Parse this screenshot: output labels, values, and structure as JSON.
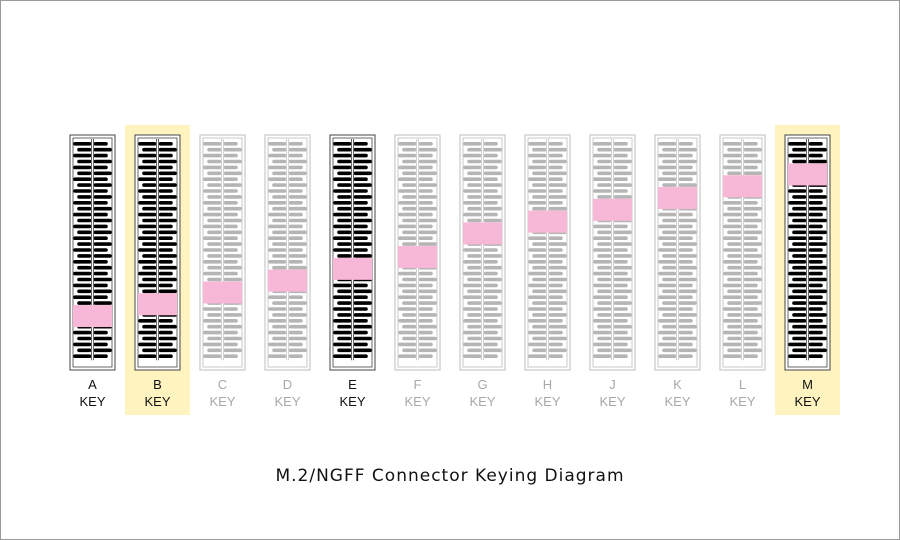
{
  "caption": "M.2/NGFF Connector Keying Diagram",
  "colors": {
    "active": "#000000",
    "inactive": "#b5b5b5",
    "notch": "#f7b8d8",
    "highlight": "#fff4c0",
    "border_active": "#444444",
    "border_inactive": "#bdbdbd"
  },
  "keys": [
    {
      "letter": "A",
      "word": "KEY",
      "active": true,
      "highlighted": false,
      "notch_row": 29.5
    },
    {
      "letter": "B",
      "word": "KEY",
      "active": true,
      "highlighted": true,
      "notch_row": 27.5
    },
    {
      "letter": "C",
      "word": "KEY",
      "active": false,
      "highlighted": false,
      "notch_row": 25.5
    },
    {
      "letter": "D",
      "word": "KEY",
      "active": false,
      "highlighted": false,
      "notch_row": 23.5
    },
    {
      "letter": "E",
      "word": "KEY",
      "active": true,
      "highlighted": false,
      "notch_row": 21.5
    },
    {
      "letter": "F",
      "word": "KEY",
      "active": false,
      "highlighted": false,
      "notch_row": 19.5
    },
    {
      "letter": "G",
      "word": "KEY",
      "active": false,
      "highlighted": false,
      "notch_row": 15.5
    },
    {
      "letter": "H",
      "word": "KEY",
      "active": false,
      "highlighted": false,
      "notch_row": 13.5
    },
    {
      "letter": "J",
      "word": "KEY",
      "active": false,
      "highlighted": false,
      "notch_row": 11.5
    },
    {
      "letter": "K",
      "word": "KEY",
      "active": false,
      "highlighted": false,
      "notch_row": 9.5
    },
    {
      "letter": "L",
      "word": "KEY",
      "active": false,
      "highlighted": false,
      "notch_row": 7.5
    },
    {
      "letter": "M",
      "word": "KEY",
      "active": true,
      "highlighted": true,
      "notch_row": 5.5
    }
  ]
}
